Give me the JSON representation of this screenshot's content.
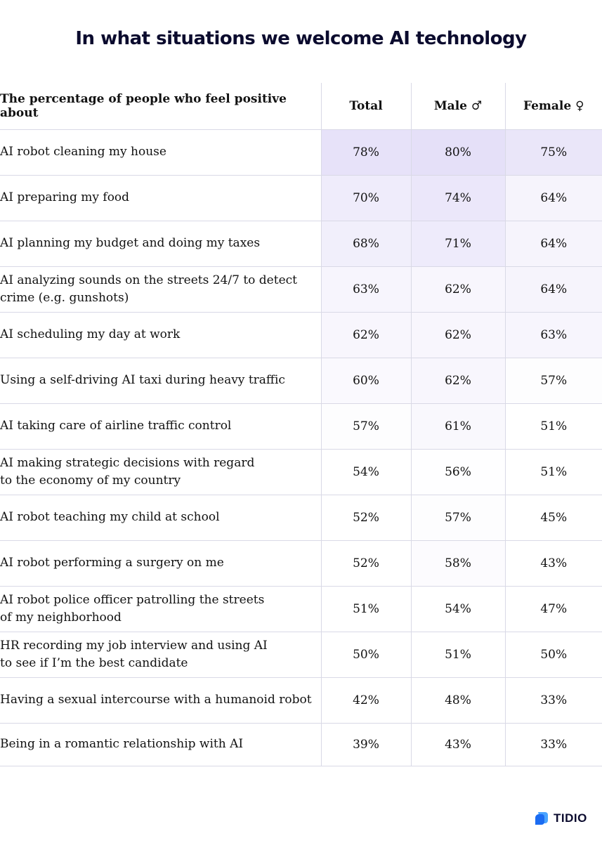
{
  "chart_data": {
    "type": "table",
    "title": "In what situations we welcome AI technology",
    "columns": [
      "The percentage of people who feel positive about",
      "Total",
      "Male ♂",
      "Female ♀"
    ],
    "rows": [
      {
        "label": "AI robot cleaning my house",
        "values": [
          78,
          80,
          75
        ]
      },
      {
        "label": "AI preparing my food",
        "values": [
          70,
          74,
          64
        ]
      },
      {
        "label": "AI planning my budget and doing my taxes",
        "values": [
          68,
          71,
          64
        ]
      },
      {
        "label": "AI analyzing sounds on the streets 24/7 to detect\ncrime (e.g. gunshots)",
        "values": [
          63,
          62,
          64
        ]
      },
      {
        "label": "AI scheduling my day at work",
        "values": [
          62,
          62,
          63
        ]
      },
      {
        "label": "Using a self-driving AI taxi during heavy traffic",
        "values": [
          60,
          62,
          57
        ]
      },
      {
        "label": "AI taking care of airline traffic control",
        "values": [
          57,
          61,
          51
        ]
      },
      {
        "label": "AI making strategic decisions with regard\nto the economy of my country",
        "values": [
          54,
          56,
          51
        ]
      },
      {
        "label": "AI robot teaching my child at school",
        "values": [
          52,
          57,
          45
        ]
      },
      {
        "label": "AI robot performing a surgery on me",
        "values": [
          52,
          58,
          43
        ]
      },
      {
        "label": "AI robot police officer patrolling the streets\nof my neighborhood",
        "values": [
          51,
          54,
          47
        ]
      },
      {
        "label": "HR recording my job interview and using AI\nto see if I’m the best candidate",
        "values": [
          50,
          51,
          50
        ]
      },
      {
        "label": "Having a sexual intercourse with a humanoid robot",
        "values": [
          42,
          48,
          33
        ]
      },
      {
        "label": "Being in a romantic relationship with AI",
        "values": [
          39,
          43,
          33
        ]
      }
    ],
    "unit": "%"
  },
  "colors": {
    "heat_high": "#e5e0f8",
    "heat_low": "#ffffff",
    "logo_light": "#4aa4ff",
    "logo_dark": "#1b6cf2"
  },
  "brand": {
    "logo_text": "TIDIO"
  }
}
